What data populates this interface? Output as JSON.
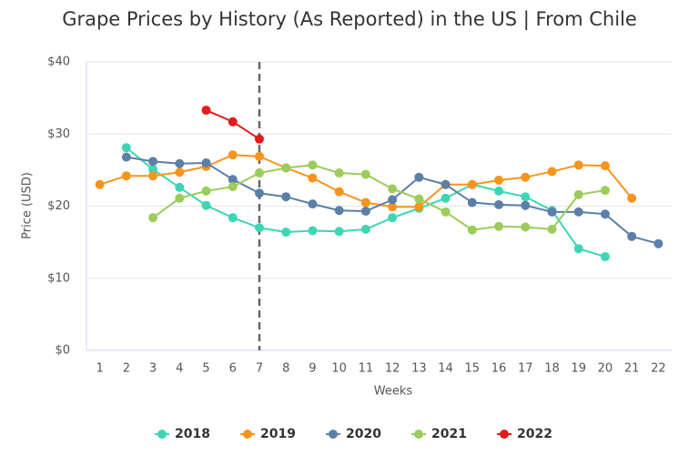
{
  "chart_data": {
    "type": "line",
    "title": "Grape Prices by History (As Reported) in the US | From Chile",
    "x_label": "Weeks",
    "y_label": "Price (USD)",
    "x": [
      1,
      2,
      3,
      4,
      5,
      6,
      7,
      8,
      9,
      10,
      11,
      12,
      13,
      14,
      15,
      16,
      17,
      18,
      19,
      20,
      21,
      22
    ],
    "xlim": [
      0.5,
      22.5
    ],
    "xticks": [
      1,
      2,
      3,
      4,
      5,
      6,
      7,
      8,
      9,
      10,
      11,
      12,
      13,
      14,
      15,
      16,
      17,
      18,
      19,
      20,
      21,
      22
    ],
    "ylim": [
      0,
      40
    ],
    "yticks": [
      {
        "value": 0,
        "label": "$0"
      },
      {
        "value": 10,
        "label": "$10"
      },
      {
        "value": 20,
        "label": "$20"
      },
      {
        "value": 30,
        "label": "$30"
      },
      {
        "value": 40,
        "label": "$40"
      }
    ],
    "grid": true,
    "vline": 7,
    "series": [
      {
        "name": "2018",
        "color": "#3dd6b5",
        "values": [
          null,
          28.1,
          25.1,
          22.6,
          20.1,
          18.4,
          17.0,
          16.4,
          16.6,
          16.5,
          16.8,
          18.4,
          19.7,
          21.1,
          23.0,
          22.1,
          21.3,
          19.4,
          14.1,
          13.0,
          null,
          null
        ]
      },
      {
        "name": "2019",
        "color": "#f7941d",
        "values": [
          23.0,
          24.2,
          24.2,
          24.7,
          25.5,
          27.1,
          26.9,
          25.3,
          23.9,
          22.0,
          20.5,
          19.9,
          19.9,
          23.0,
          23.0,
          23.6,
          24.0,
          24.8,
          25.7,
          25.6,
          21.1,
          null
        ]
      },
      {
        "name": "2020",
        "color": "#5b7fa8",
        "values": [
          null,
          26.8,
          26.2,
          25.9,
          26.0,
          23.7,
          21.8,
          21.3,
          20.3,
          19.4,
          19.3,
          20.9,
          24.0,
          23.0,
          20.5,
          20.2,
          20.1,
          19.2,
          19.2,
          18.9,
          15.8,
          14.8
        ]
      },
      {
        "name": "2021",
        "color": "#9ccc5a",
        "values": [
          null,
          null,
          18.4,
          21.1,
          22.1,
          22.7,
          24.6,
          25.3,
          25.7,
          24.6,
          24.4,
          22.4,
          21.0,
          19.2,
          16.7,
          17.2,
          17.1,
          16.8,
          21.6,
          22.2,
          null,
          null
        ]
      },
      {
        "name": "2022",
        "color": "#e41a1c",
        "values": [
          null,
          null,
          null,
          null,
          33.3,
          31.7,
          29.3,
          null,
          null,
          null,
          null,
          null,
          null,
          null,
          null,
          null,
          null,
          null,
          null,
          null,
          null,
          null
        ]
      }
    ]
  }
}
